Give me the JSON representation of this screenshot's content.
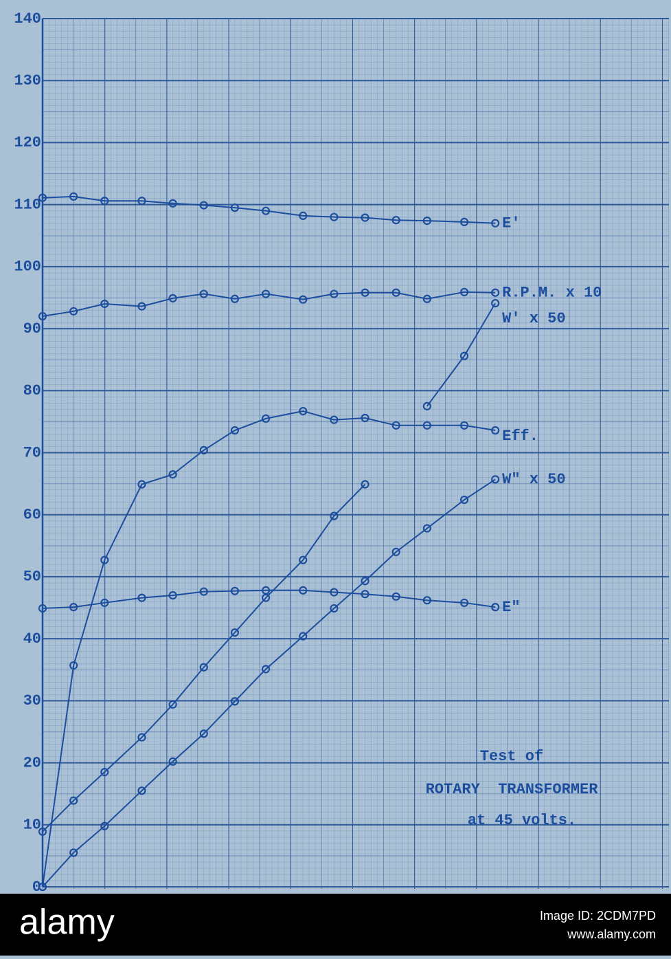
{
  "chart_data": {
    "type": "line",
    "x": [
      0,
      5,
      10,
      16,
      21,
      26,
      31,
      36,
      42,
      47,
      52,
      57,
      62,
      68,
      73
    ],
    "xlim": [
      0,
      101
    ],
    "ylim": [
      0,
      140
    ],
    "yticks": [
      0,
      10,
      20,
      30,
      40,
      50,
      60,
      70,
      80,
      90,
      100,
      110,
      120,
      130,
      140
    ],
    "grid": true,
    "color": "#1d4e9e",
    "series": [
      {
        "name": "E'",
        "color": "#1d4e9e",
        "values": [
          111.1,
          111.3,
          110.6,
          110.6,
          110.2,
          109.9,
          109.5,
          109.0,
          108.2,
          108.0,
          107.9,
          107.5,
          107.4,
          107.2,
          107.0
        ]
      },
      {
        "name": "R.P.M. x 10",
        "color": "#1d4e9e",
        "values": [
          92.0,
          92.8,
          94.0,
          93.6,
          94.9,
          95.6,
          94.8,
          95.6,
          94.7,
          95.6,
          95.8,
          95.8,
          94.8,
          95.9,
          95.8
        ]
      },
      {
        "name": "W' x 50",
        "color": "#1d4e9e",
        "values": [
          8.9,
          13.9,
          18.5,
          24.1,
          29.4,
          35.4,
          41.0,
          46.6,
          52.7,
          59.8,
          64.9,
          null,
          77.5,
          85.6,
          94.1
        ]
      },
      {
        "name": "Eff.",
        "color": "#1d4e9e",
        "values": [
          0,
          35.7,
          52.7,
          64.9,
          66.5,
          70.4,
          73.6,
          75.5,
          76.7,
          75.3,
          75.6,
          74.4,
          74.4,
          74.4,
          73.6
        ]
      },
      {
        "name": "W\" x 50",
        "color": "#1d4e9e",
        "values": [
          0,
          5.5,
          9.8,
          15.5,
          20.2,
          24.7,
          29.9,
          35.1,
          40.4,
          44.9,
          49.3,
          54.0,
          57.8,
          62.4,
          65.7
        ]
      },
      {
        "name": "E\"",
        "color": "#1d4e9e",
        "values": [
          44.9,
          45.1,
          45.8,
          46.6,
          47.0,
          47.6,
          47.7,
          47.8,
          47.8,
          47.5,
          47.2,
          46.8,
          46.2,
          45.8,
          45.1
        ]
      }
    ],
    "annotation": [
      "Test of",
      "ROTARY  TRANSFORMER",
      "at 45 volts."
    ]
  },
  "footer": {
    "brand": "alamy",
    "image_id": "Image ID: 2CDM7PD",
    "url": "www.alamy.com"
  }
}
